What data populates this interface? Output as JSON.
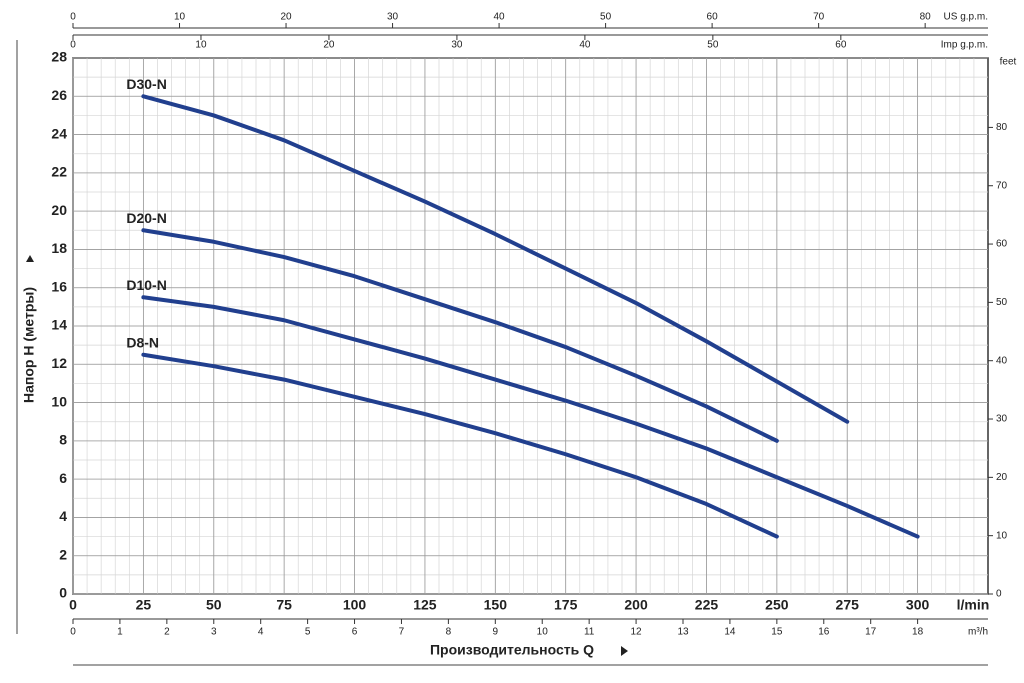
{
  "chart_data": {
    "type": "line",
    "ylabel": "Напор H (метры)",
    "xlabel": "Производительность Q",
    "x_unit": "l/min",
    "y2label": "feet",
    "xlim": [
      0,
      325
    ],
    "xticks": [
      0,
      25,
      50,
      75,
      100,
      125,
      150,
      175,
      200,
      225,
      250,
      275,
      300
    ],
    "ylim": [
      0,
      28
    ],
    "yticks": [
      0,
      2,
      4,
      6,
      8,
      10,
      12,
      14,
      16,
      18,
      20,
      22,
      24,
      26,
      28
    ],
    "y2lim": [
      0,
      91.9
    ],
    "y2ticks": [
      0,
      10,
      20,
      30,
      40,
      50,
      60,
      70,
      80
    ],
    "secondary_x_axes": [
      {
        "label": "US g.p.m.",
        "lim": [
          0,
          85.9
        ],
        "ticks": [
          0,
          10,
          20,
          30,
          40,
          50,
          60,
          70,
          80
        ]
      },
      {
        "label": "Imp g.p.m.",
        "lim": [
          0,
          71.5
        ],
        "ticks": [
          0,
          10,
          20,
          30,
          40,
          50,
          60
        ]
      },
      {
        "label": "m³/h",
        "lim": [
          0,
          19.5
        ],
        "ticks": [
          0,
          1,
          2,
          3,
          4,
          5,
          6,
          7,
          8,
          9,
          10,
          11,
          12,
          13,
          14,
          15,
          16,
          17,
          18
        ]
      }
    ],
    "grid": true,
    "x": [
      25,
      50,
      75,
      100,
      125,
      150,
      175,
      200,
      225,
      250,
      275,
      300
    ],
    "series": [
      {
        "name": "D30-N",
        "color": "#213f8e",
        "values": [
          26,
          25,
          23.7,
          22.1,
          20.5,
          18.8,
          17,
          15.2,
          13.2,
          11.1,
          9,
          null
        ]
      },
      {
        "name": "D20-N",
        "color": "#213f8e",
        "values": [
          19,
          18.4,
          17.6,
          16.6,
          15.4,
          14.2,
          12.9,
          11.4,
          9.8,
          8,
          null,
          null
        ]
      },
      {
        "name": "D10-N",
        "color": "#213f8e",
        "values": [
          15.5,
          15,
          14.3,
          13.3,
          12.3,
          11.2,
          10.1,
          8.9,
          7.6,
          6.1,
          4.6,
          3
        ]
      },
      {
        "name": "D8-N",
        "color": "#213f8e",
        "values": [
          12.5,
          11.9,
          11.2,
          10.3,
          9.4,
          8.4,
          7.3,
          6.1,
          4.7,
          3,
          null,
          null
        ]
      }
    ]
  }
}
